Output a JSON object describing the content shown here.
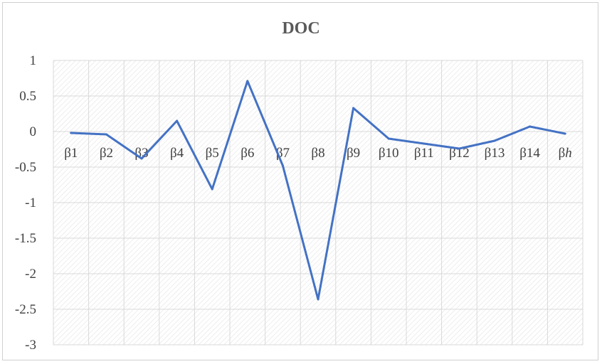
{
  "chart_data": {
    "type": "line",
    "title": "DOC",
    "xlabel": "",
    "ylabel": "",
    "categories": [
      "β1",
      "β2",
      "β3",
      "β4",
      "β5",
      "β6",
      "β7",
      "β8",
      "β9",
      "β10",
      "β11",
      "β12",
      "β13",
      "β14",
      "βh"
    ],
    "category_italic_suffix": {
      "14": "h"
    },
    "y_tick_labels": [
      "1",
      "0.5",
      "0",
      "-0.5",
      "-1",
      "-1.5",
      "-2",
      "-2.5",
      "-3"
    ],
    "ylim": [
      -3,
      1
    ],
    "grid": true,
    "legend": "none",
    "series": [
      {
        "values": [
          -0.02,
          -0.04,
          -0.38,
          0.15,
          -0.81,
          0.71,
          -0.48,
          -2.36,
          0.33,
          -0.1,
          -0.17,
          -0.24,
          -0.13,
          0.07,
          -0.03
        ]
      }
    ],
    "colors": {
      "line": "#4472c4",
      "grid": "#d9d9d9",
      "hatch": "#e4e4e4",
      "text": "#404040",
      "title": "#595959"
    }
  }
}
